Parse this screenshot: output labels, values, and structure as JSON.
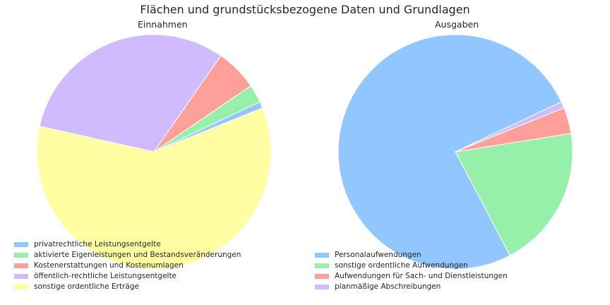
{
  "figure_title": "Flächen und grundstücksbezogene Daten und Grundlagen",
  "chart_data": [
    {
      "type": "pie",
      "title": "Einnahmen",
      "start_angle_deg": 22,
      "direction": "counterclockwise",
      "legend_position": "lower-left",
      "labels": [
        "privatrechtliche Leistungsentgelte",
        "aktivierte Eigenleistungen und Bestandsveränderungen",
        "Kostenerstattungen und Kostenumlagen",
        "öffentlich-rechtliche Leistungsentgelte",
        "sonstige ordentliche Erträge"
      ],
      "values": [
        0.9,
        2.5,
        5.8,
        31.2,
        59.6
      ],
      "colors": [
        "#92c6ff",
        "#97f0aa",
        "#ff9f9a",
        "#d0bbff",
        "#fffea3"
      ]
    },
    {
      "type": "pie",
      "title": "Ausgaben",
      "start_angle_deg": 22,
      "direction": "counterclockwise",
      "legend_position": "lower-left",
      "labels": [
        "Personalaufwendungen",
        "sonstige ordentliche Aufwendungen",
        "Aufwendungen für Sach- und Dienstleistungen",
        "planmäßige Abschreibungen"
      ],
      "values": [
        75.7,
        19.8,
        3.6,
        0.9
      ],
      "order_drawn": [
        3,
        0,
        1,
        2
      ],
      "colors": [
        "#92c6ff",
        "#97f0aa",
        "#ff9f9a",
        "#d0bbff"
      ]
    }
  ]
}
